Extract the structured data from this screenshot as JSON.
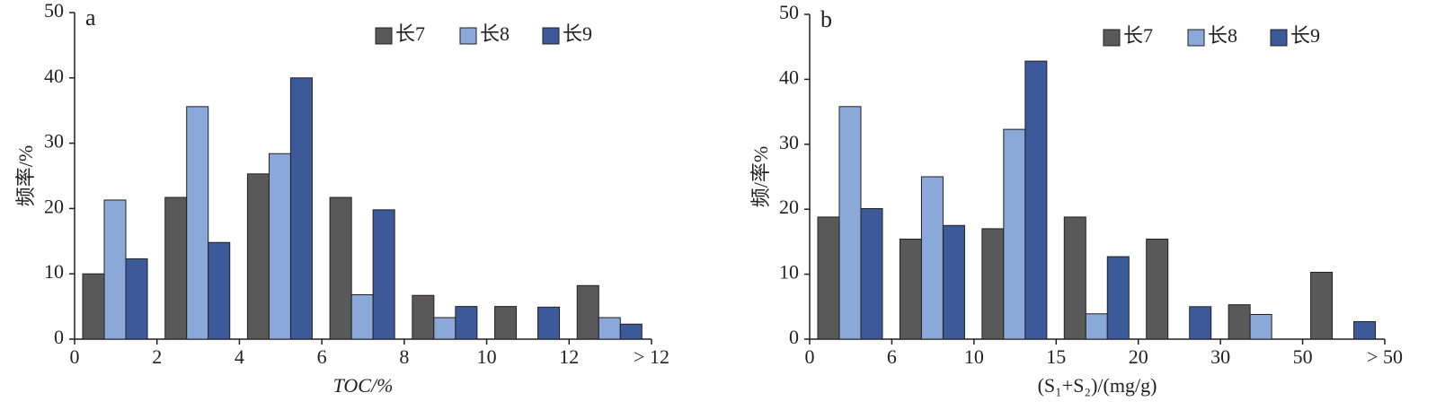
{
  "chart_data": [
    {
      "type": "bar",
      "panel": "a",
      "xlabel": "TOC/%",
      "ylabel": "频率/%",
      "xtick_labels": [
        "0",
        "2",
        "4",
        "6",
        "8",
        "10",
        "12",
        "> 12"
      ],
      "ylim": [
        0,
        50
      ],
      "yticks": [
        0,
        10,
        20,
        30,
        40,
        50
      ],
      "series": [
        {
          "name": "长7",
          "color": "#595959",
          "values": [
            10,
            21.7,
            25.3,
            21.7,
            6.7,
            5,
            8.2
          ]
        },
        {
          "name": "长8",
          "color": "#8aa8d8",
          "values": [
            21.3,
            35.6,
            28.4,
            6.8,
            3.3,
            0,
            3.3
          ]
        },
        {
          "name": "长9",
          "color": "#3c5a9a",
          "values": [
            12.3,
            14.8,
            40,
            19.8,
            5,
            4.9,
            2.3
          ]
        }
      ]
    },
    {
      "type": "bar",
      "panel": "b",
      "xlabel": "(S₁+S₂)/(mg/g)",
      "ylabel": "频/率%",
      "xtick_labels": [
        "0",
        "6",
        "10",
        "15",
        "20",
        "30",
        "50",
        "> 50"
      ],
      "ylim": [
        0,
        50
      ],
      "yticks": [
        0,
        10,
        20,
        30,
        40,
        50
      ],
      "series": [
        {
          "name": "长7",
          "color": "#595959",
          "values": [
            18.8,
            15.4,
            17,
            18.8,
            15.4,
            5.3,
            10.3
          ]
        },
        {
          "name": "长8",
          "color": "#8aa8d8",
          "values": [
            35.8,
            25,
            32.3,
            3.9,
            0,
            3.8,
            0
          ]
        },
        {
          "name": "长9",
          "color": "#3c5a9a",
          "values": [
            20.1,
            17.5,
            42.8,
            12.7,
            5,
            0,
            2.7
          ]
        }
      ]
    }
  ]
}
